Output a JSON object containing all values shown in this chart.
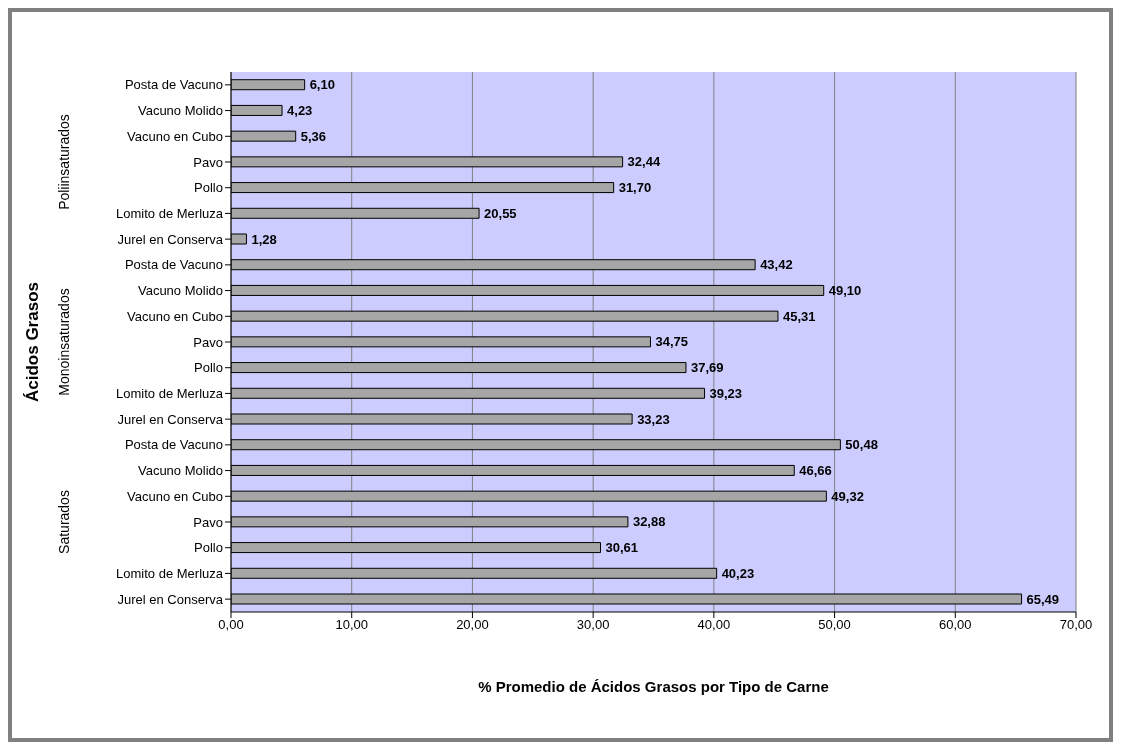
{
  "chart_data": {
    "type": "bar",
    "orientation": "horizontal",
    "xlabel": "% Promedio de Ácidos Grasos por Tipo de Carne",
    "ylabel": "Ácidos Grasos",
    "categories": [
      "Posta de Vacuno",
      "Vacuno Molido",
      "Vacuno en Cubo",
      "Pavo",
      "Pollo",
      "Lomito de Merluza",
      "Jurel en Conserva",
      "Posta de Vacuno",
      "Vacuno Molido",
      "Vacuno en Cubo",
      "Pavo",
      "Pollo",
      "Lomito de Merluza",
      "Jurel en Conserva",
      "Posta de Vacuno",
      "Vacuno Molido",
      "Vacuno en Cubo",
      "Pavo",
      "Pollo",
      "Lomito de Merluza",
      "Jurel en Conserva"
    ],
    "values": [
      6.1,
      4.23,
      5.36,
      32.44,
      31.7,
      20.55,
      1.28,
      43.42,
      49.1,
      45.31,
      34.75,
      37.69,
      39.23,
      33.23,
      50.48,
      46.66,
      49.32,
      32.88,
      30.61,
      40.23,
      65.49
    ],
    "value_labels": [
      "6,10",
      "4,23",
      "5,36",
      "32,44",
      "31,70",
      "20,55",
      "1,28",
      "43,42",
      "49,10",
      "45,31",
      "34,75",
      "37,69",
      "39,23",
      "33,23",
      "50,48",
      "46,66",
      "49,32",
      "32,88",
      "30,61",
      "40,23",
      "65,49"
    ],
    "color": "#a6a6a6",
    "annotations": [
      "Poliinsaturados",
      "Monoinsaturados",
      "Saturados"
    ],
    "xlim": [
      0,
      70
    ],
    "xticks": [
      {
        "value": 0,
        "label": "0,00"
      },
      {
        "value": 10,
        "label": "10,00"
      },
      {
        "value": 20,
        "label": "20,00"
      },
      {
        "value": 30,
        "label": "30,00"
      },
      {
        "value": 40,
        "label": "40,00"
      },
      {
        "value": 50,
        "label": "50,00"
      },
      {
        "value": 60,
        "label": "60,00"
      },
      {
        "value": 70,
        "label": "70,00"
      }
    ],
    "grid": "x",
    "legend": false
  }
}
